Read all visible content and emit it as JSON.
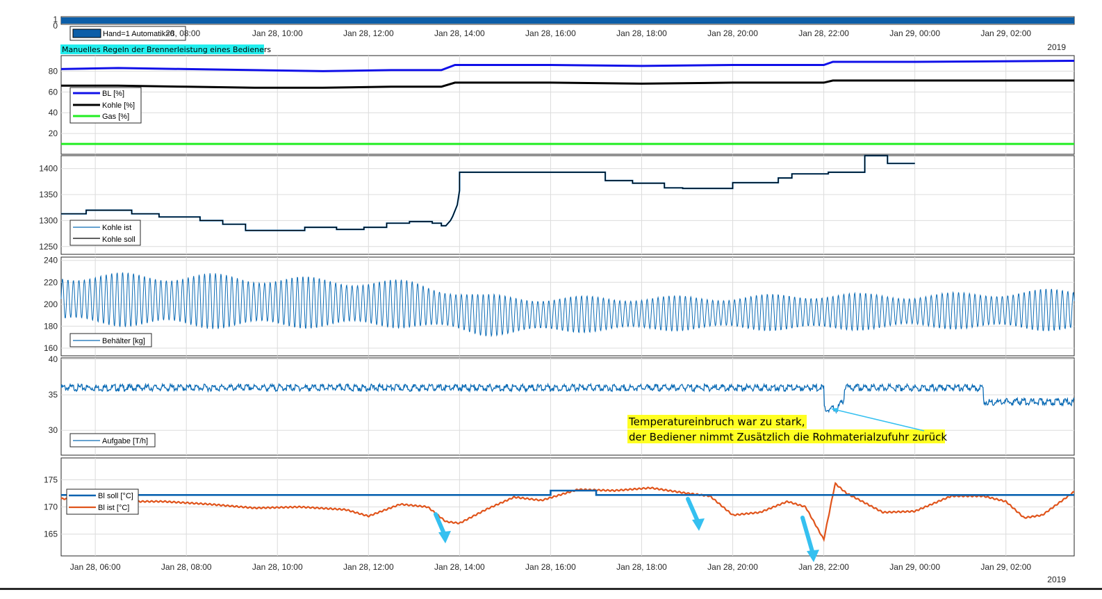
{
  "time_axis": {
    "ticks": [
      "Jan 28, 06:00",
      "Jan 28, 08:00",
      "Jan 28, 10:00",
      "Jan 28, 12:00",
      "Jan 28, 14:00",
      "Jan 28, 16:00",
      "Jan 28, 18:00",
      "Jan 28, 20:00",
      "Jan 28, 22:00",
      "Jan 29, 00:00",
      "Jan 29, 02:00"
    ],
    "top_ticks": [
      "28, 08:00",
      "Jan 28, 10:00",
      "Jan 28, 12:00",
      "Jan 28, 14:00",
      "Jan 28, 16:00",
      "Jan 28, 18:00",
      "Jan 28, 20:00",
      "Jan 28, 22:00",
      "Jan 29, 00:00",
      "Jan 29, 02:00"
    ],
    "year": "2019",
    "range_hours": [
      5.25,
      27.5
    ]
  },
  "caption": "Manuelles Regeln der Brennerleistung eines Bedieners",
  "annotation": {
    "line1": "Temperatureinbruch war zu stark,",
    "line2": "der Bediener nimmt Zusätzlich die Rohmaterialzufuhr zurück"
  },
  "colors": {
    "blue_bar": "#0c5ea8",
    "bl": "#1010e8",
    "kohle": "#000000",
    "gas": "#22ee22",
    "signal": "#0b6bb5",
    "ist": "#e0541b",
    "soll": "#0b63b0",
    "arrow": "#35c0f0",
    "annotation_bg": "#ffff22",
    "caption_bg": "#22eeee"
  },
  "chart_data": [
    {
      "type": "area",
      "ylim": [
        0,
        1
      ],
      "yticks": [
        "0",
        "1"
      ],
      "series": [
        {
          "name": "Hand=1 Automatik=0",
          "x": [
            5.25,
            27.5
          ],
          "y": [
            1,
            1
          ]
        }
      ],
      "legend": "top-left"
    },
    {
      "type": "line",
      "ylim": [
        0,
        95
      ],
      "yticks": [
        "20",
        "40",
        "60",
        "80"
      ],
      "legend": "bottom-left",
      "series": [
        {
          "name": "BL [%]",
          "x": [
            5.25,
            6.5,
            8,
            9.5,
            11,
            12.5,
            13.6,
            13.9,
            16,
            18,
            20,
            22,
            22.2,
            24,
            27.5
          ],
          "y": [
            82,
            83,
            82,
            81,
            80,
            81,
            81,
            86,
            86,
            85,
            86,
            86,
            89,
            89,
            90
          ]
        },
        {
          "name": "Kohle [%]",
          "x": [
            5.25,
            6.5,
            8,
            9.5,
            11,
            12.5,
            13.6,
            13.9,
            16,
            18,
            20,
            22,
            22.2,
            24,
            27.5
          ],
          "y": [
            66,
            66,
            65,
            64,
            64,
            65,
            65,
            69,
            69,
            68,
            69,
            69,
            71,
            71,
            71
          ]
        },
        {
          "name": "Gas [%]",
          "x": [
            5.25,
            27.5
          ],
          "y": [
            10,
            10
          ]
        }
      ]
    },
    {
      "type": "line",
      "ylim": [
        1235,
        1425
      ],
      "yticks": [
        "1250",
        "1300",
        "1350",
        "1400"
      ],
      "legend": "bottom-left",
      "series": [
        {
          "name": "Kohle ist"
        },
        {
          "name": "Kohle soll",
          "x": [
            5.25,
            5.8,
            5.8,
            6.8,
            6.8,
            7.4,
            7.4,
            8.3,
            8.3,
            8.8,
            8.8,
            9.3,
            9.3,
            10.6,
            10.6,
            11.3,
            11.3,
            11.9,
            11.9,
            12.4,
            12.4,
            12.9,
            12.9,
            13.4,
            13.4,
            13.6,
            13.6,
            13.7,
            13.8,
            13.85,
            13.95,
            14,
            14,
            17.2,
            17.2,
            17.8,
            17.8,
            18.5,
            18.5,
            18.9,
            18.9,
            20.0,
            20.0,
            21.0,
            21.0,
            21.3,
            21.3,
            21.8,
            21.8,
            22.1,
            22.1,
            22.5,
            22.5,
            22.9,
            22.9,
            23.4,
            23.4,
            24.0
          ],
          "y": [
            1313,
            1313,
            1320,
            1320,
            1313,
            1313,
            1307,
            1307,
            1300,
            1300,
            1293,
            1293,
            1281,
            1281,
            1287,
            1287,
            1283,
            1283,
            1287,
            1287,
            1295,
            1295,
            1298,
            1298,
            1295,
            1295,
            1290,
            1290,
            1300,
            1308,
            1330,
            1358,
            1393,
            1393,
            1377,
            1377,
            1372,
            1372,
            1363,
            1363,
            1362,
            1362,
            1373,
            1373,
            1382,
            1382,
            1390,
            1390,
            1390,
            1390,
            1393,
            1393,
            1393,
            1393,
            1425,
            1425,
            1410,
            1410
          ]
        }
      ]
    },
    {
      "type": "line",
      "ylim": [
        153,
        243
      ],
      "yticks": [
        "160",
        "180",
        "200",
        "220",
        "240"
      ],
      "legend": "bottom-left",
      "series": [
        {
          "name": "Behälter [kg]",
          "center": 200,
          "period_hours": 0.12,
          "amp": {
            "x": [
              5.25,
              8,
              13,
              16,
              20,
              22,
              24,
              27.5
            ],
            "y": [
              24,
              26,
              22,
              17,
              16,
              18,
              16,
              20
            ]
          },
          "center_curve": {
            "x": [
              5.25,
              13,
              14.5,
              27.5
            ],
            "y": [
              205,
              200,
              190,
              195
            ]
          }
        }
      ]
    },
    {
      "type": "line",
      "ylim": [
        26.5,
        40.2
      ],
      "yticks": [
        "30",
        "35",
        "40"
      ],
      "legend": "bottom-left",
      "series": [
        {
          "name": "Aufgabe [T/h]",
          "x": [
            5.25,
            20,
            22,
            22,
            22.3,
            22.35,
            22.45,
            22.45,
            25.5,
            25.5,
            27.5
          ],
          "y": [
            36,
            36,
            36,
            33,
            33,
            33.5,
            34.5,
            36,
            36,
            34,
            34
          ]
        }
      ]
    },
    {
      "type": "line",
      "ylim": [
        161,
        179
      ],
      "yticks": [
        "165",
        "170",
        "175"
      ],
      "legend": "top-left",
      "series": [
        {
          "name": "Bl soll [°C]",
          "x": [
            5.25,
            16.0,
            16.0,
            17.0,
            17.0,
            27.5
          ],
          "y": [
            172.2,
            172.2,
            173.0,
            173.0,
            172.2,
            172.2
          ]
        },
        {
          "name": "Bl ist [°C]",
          "x": [
            5.25,
            5.5,
            6.5,
            7.5,
            8.5,
            9.5,
            10.5,
            11.5,
            12.0,
            12.7,
            13.3,
            13.7,
            14,
            14.6,
            15.2,
            15.8,
            16.6,
            17.4,
            18.2,
            19,
            19.5,
            20,
            20.6,
            21.2,
            21.6,
            22.0,
            22.25,
            22.5,
            22.8,
            23.3,
            24,
            24.8,
            25.5,
            26.0,
            26.4,
            26.8,
            27.5
          ],
          "y": [
            171.5,
            171.5,
            171.0,
            171.0,
            170.5,
            169.8,
            170.0,
            169.5,
            168.3,
            170.5,
            170.0,
            167.3,
            167.0,
            169.6,
            171.8,
            171.2,
            173.2,
            173.0,
            173.5,
            172.5,
            172.0,
            168.5,
            169.0,
            171.0,
            170.0,
            164.0,
            174.3,
            172.5,
            171.2,
            169.0,
            169.2,
            172.0,
            172.0,
            171.0,
            168.0,
            168.5,
            172.8
          ]
        }
      ]
    }
  ]
}
